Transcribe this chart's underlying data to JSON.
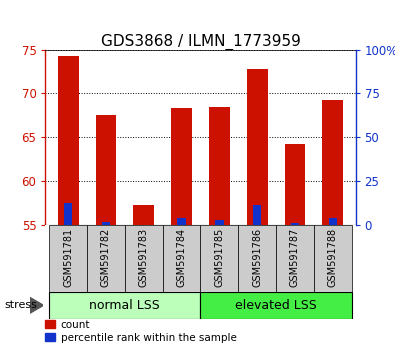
{
  "title": "GDS3868 / ILMN_1773959",
  "samples": [
    "GSM591781",
    "GSM591782",
    "GSM591783",
    "GSM591784",
    "GSM591785",
    "GSM591786",
    "GSM591787",
    "GSM591788"
  ],
  "count_values": [
    74.3,
    67.5,
    57.3,
    68.3,
    68.5,
    72.8,
    64.2,
    69.2
  ],
  "percentile_values": [
    57.5,
    55.3,
    54.7,
    55.8,
    55.5,
    57.3,
    55.2,
    55.8
  ],
  "y_min": 55,
  "y_max": 75,
  "y_ticks": [
    55,
    60,
    65,
    70,
    75
  ],
  "right_y_ticks": [
    0,
    25,
    50,
    75,
    100
  ],
  "right_y_tick_labels": [
    "0",
    "25",
    "50",
    "75",
    "100%"
  ],
  "group1_label": "normal LSS",
  "group2_label": "elevated LSS",
  "stress_label": "stress",
  "legend_count": "count",
  "legend_percentile": "percentile rank within the sample",
  "bar_color_red": "#cc1100",
  "bar_color_blue": "#1133cc",
  "group1_color": "#bbffbb",
  "group2_color": "#44ee44",
  "label_bg_color": "#cccccc",
  "bar_width": 0.55,
  "blue_bar_width": 0.22,
  "title_fontsize": 11,
  "tick_fontsize": 8.5,
  "sample_fontsize": 7,
  "group_fontsize": 9,
  "legend_fontsize": 7.5
}
